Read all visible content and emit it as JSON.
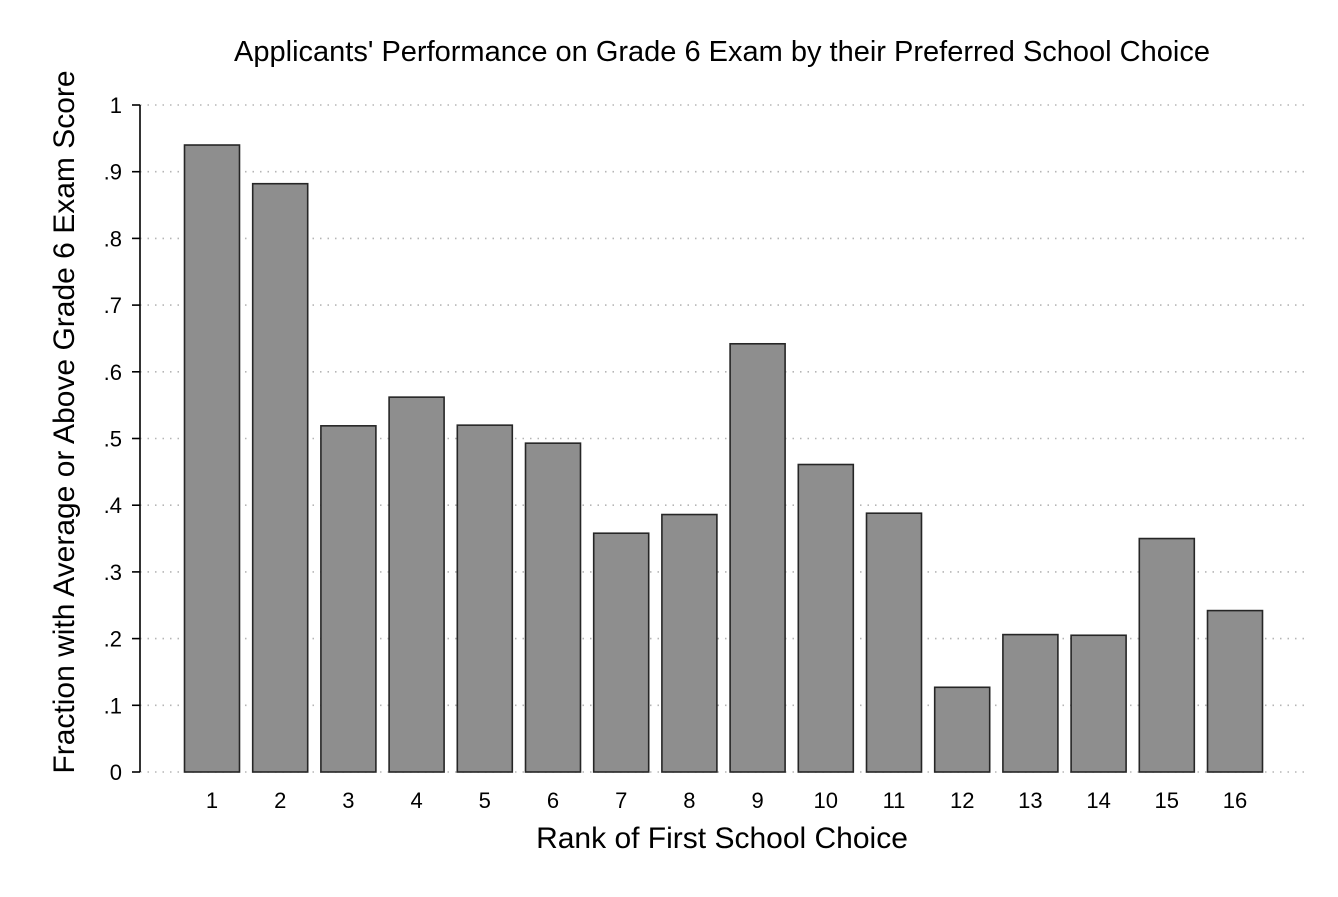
{
  "chart_data": {
    "type": "bar",
    "title": "Applicants' Performance on Grade 6 Exam by their Preferred School Choice",
    "xlabel": "Rank of First School Choice",
    "ylabel": "Fraction with Average or Above Grade 6 Exam Score",
    "categories": [
      "1",
      "2",
      "3",
      "4",
      "5",
      "6",
      "7",
      "8",
      "9",
      "10",
      "11",
      "12",
      "13",
      "14",
      "15",
      "16"
    ],
    "values": [
      0.94,
      0.882,
      0.519,
      0.562,
      0.52,
      0.493,
      0.358,
      0.386,
      0.642,
      0.461,
      0.388,
      0.127,
      0.206,
      0.205,
      0.35,
      0.242
    ],
    "ylim": [
      0,
      1
    ],
    "yticks": [
      0,
      0.1,
      0.2,
      0.3,
      0.4,
      0.5,
      0.6,
      0.7,
      0.8,
      0.9,
      1
    ],
    "ytick_labels": [
      "0",
      ".1",
      ".2",
      ".3",
      ".4",
      ".5",
      ".6",
      ".7",
      ".8",
      ".9",
      "1"
    ],
    "grid": true,
    "legend": "none",
    "bar_color": "#8e8e8e",
    "bar_outline_color": "#262626"
  }
}
